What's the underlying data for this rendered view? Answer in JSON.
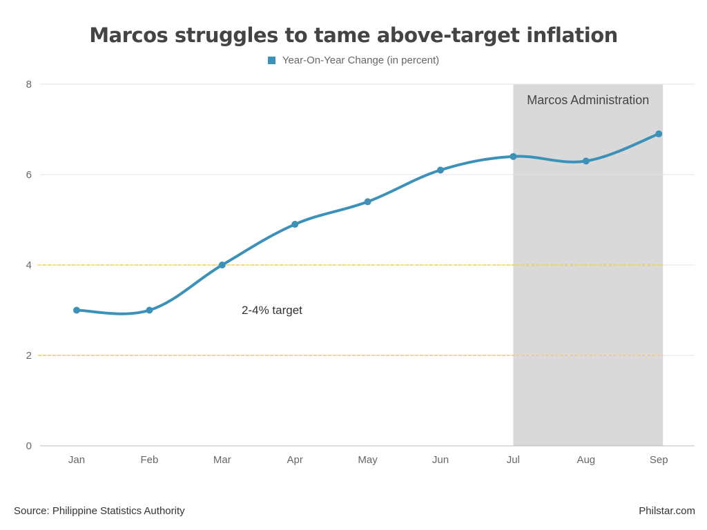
{
  "chart_data": {
    "type": "line",
    "title": "Marcos struggles to tame above-target inflation",
    "categories": [
      "Jan",
      "Feb",
      "Mar",
      "Apr",
      "May",
      "Jun",
      "Jul",
      "Aug",
      "Sep"
    ],
    "series": [
      {
        "name": "Year-On-Year Change (in percent)",
        "values": [
          3.0,
          3.0,
          4.0,
          4.9,
          5.4,
          6.1,
          6.4,
          6.3,
          6.9
        ],
        "color": "#3c91b8"
      }
    ],
    "ylim": [
      0,
      8
    ],
    "yticks": [
      "0",
      "2",
      "4",
      "6",
      "8"
    ],
    "grid": true,
    "legend_position": "top-center",
    "target_band": {
      "low": 2,
      "high": 4,
      "label": "2-4% target",
      "color": "#f2d13c"
    },
    "shaded_region": {
      "from": "Jul",
      "to": "Sep",
      "label": "Marcos Administration",
      "color": "#d9d9d9"
    }
  },
  "footer": {
    "source": "Source: Philippine Statistics Authority",
    "credit": "Philstar.com"
  }
}
